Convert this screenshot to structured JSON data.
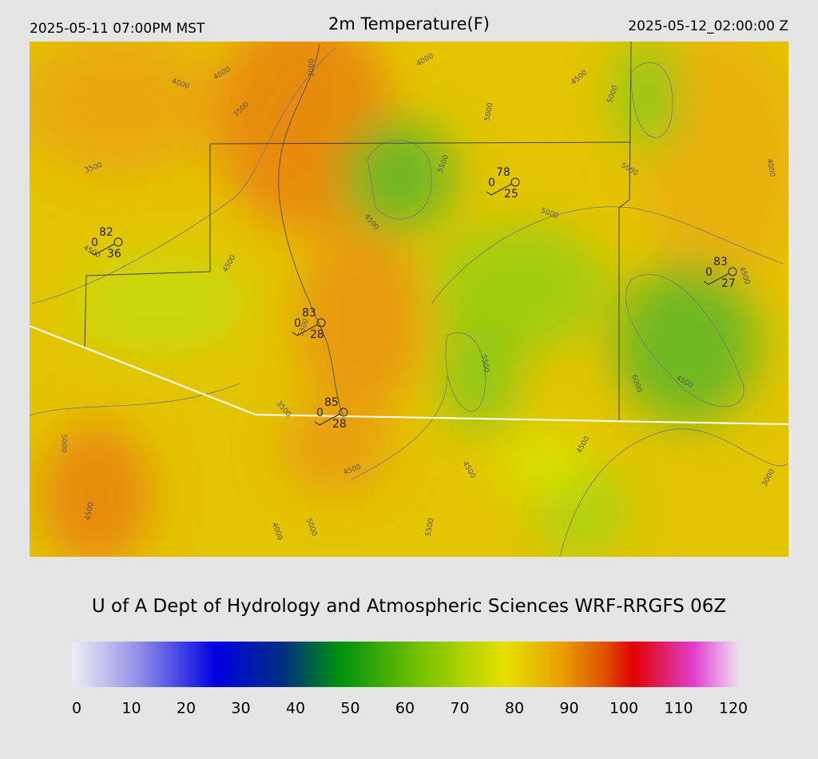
{
  "header": {
    "valid_local": "2025-05-11 07:00PM MST",
    "title": "2m Temperature(F)",
    "valid_utc": "2025-05-12_02:00:00 Z"
  },
  "map": {
    "contour_labels": [
      "4000",
      "4000",
      "3000",
      "4000",
      "3500",
      "5000",
      "4500",
      "5000",
      "5000",
      "4000",
      "3500",
      "5500",
      "4500",
      "5000",
      "4500",
      "4500",
      "4500",
      "5500",
      "5500",
      "6000",
      "4500",
      "3500",
      "5000",
      "4500",
      "4500",
      "4500",
      "3000",
      "4500",
      "4000",
      "5000",
      "5500"
    ],
    "stations": [
      {
        "temperature": 82,
        "left": 0,
        "dewpoint": 36
      },
      {
        "temperature": 78,
        "left": 0,
        "dewpoint": 25
      },
      {
        "temperature": 83,
        "left": 0,
        "dewpoint": 27
      },
      {
        "temperature": 83,
        "left": 0,
        "dewpoint": 28
      },
      {
        "temperature": 85,
        "left": 0,
        "dewpoint": 28
      }
    ]
  },
  "footer": "U of A Dept of Hydrology and Atmospheric Sciences WRF-RRGFS 06Z",
  "colorbar": {
    "range": [
      0,
      120
    ],
    "ticks": [
      0,
      10,
      20,
      30,
      40,
      50,
      60,
      70,
      80,
      90,
      100,
      110,
      120
    ],
    "color_stops": [
      {
        "value": 0,
        "color": "#eeeef4"
      },
      {
        "value": 12,
        "color": "#9090e8"
      },
      {
        "value": 26,
        "color": "#0000e0"
      },
      {
        "value": 38,
        "color": "#003080"
      },
      {
        "value": 48,
        "color": "#009010"
      },
      {
        "value": 62,
        "color": "#70c000"
      },
      {
        "value": 78,
        "color": "#e8e000"
      },
      {
        "value": 88,
        "color": "#e8a000"
      },
      {
        "value": 96,
        "color": "#e05000"
      },
      {
        "value": 101,
        "color": "#e00000"
      },
      {
        "value": 112,
        "color": "#e040d0"
      },
      {
        "value": 120,
        "color": "#f0e0f0"
      }
    ]
  }
}
